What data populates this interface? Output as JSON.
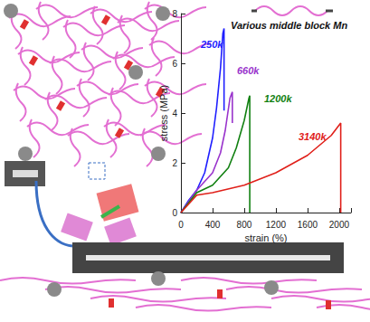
{
  "chart_data": {
    "type": "line",
    "title": "Various middle block Mn",
    "xlabel": "strain (%)",
    "ylabel": "stress (MPa)",
    "xlim": [
      0,
      2150
    ],
    "xticks": [
      0,
      400,
      800,
      1200,
      1600,
      2000
    ],
    "ylim": [
      0,
      8
    ],
    "yticks": [
      0,
      2,
      4,
      6,
      8
    ],
    "grid": false,
    "series": [
      {
        "name": "250k",
        "color": "#1f1fff",
        "x": [
          0,
          100,
          200,
          300,
          400,
          450,
          500,
          530,
          545,
          545
        ],
        "values": [
          0,
          0.5,
          0.9,
          1.6,
          3.0,
          4.2,
          5.8,
          7.2,
          7.4,
          4.1
        ]
      },
      {
        "name": "660k",
        "color": "#9933cc",
        "x": [
          0,
          200,
          400,
          500,
          560,
          620,
          650,
          650
        ],
        "values": [
          0,
          0.9,
          1.6,
          2.4,
          3.3,
          4.6,
          4.85,
          3.6
        ]
      },
      {
        "name": "1200k",
        "color": "#118011",
        "x": [
          0,
          200,
          400,
          600,
          700,
          800,
          860,
          870,
          870
        ],
        "values": [
          0,
          0.8,
          1.1,
          1.8,
          2.6,
          3.7,
          4.6,
          4.7,
          0
        ]
      },
      {
        "name": "3140k",
        "color": "#e0201a",
        "x": [
          0,
          200,
          400,
          800,
          1200,
          1600,
          1900,
          2020,
          2020
        ],
        "values": [
          0,
          0.7,
          0.8,
          1.1,
          1.6,
          2.3,
          3.1,
          3.6,
          0
        ]
      }
    ]
  }
}
